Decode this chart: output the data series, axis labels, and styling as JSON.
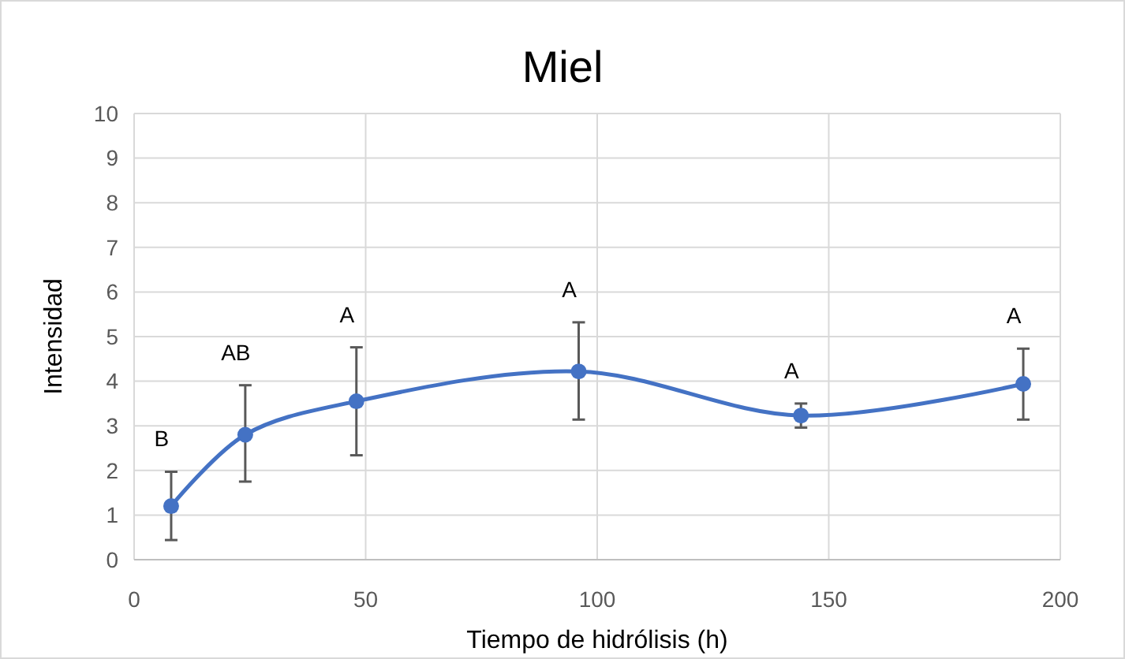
{
  "chart_data": {
    "type": "line",
    "title": "Miel",
    "xlabel": "Tiempo de hidrólisis (h)",
    "ylabel": "Intensidad",
    "x": [
      8,
      24,
      48,
      96,
      144,
      192
    ],
    "series": [
      {
        "color": "#4472c4",
        "values": [
          1.2,
          2.8,
          3.55,
          4.22,
          3.23,
          3.94
        ],
        "errors": [
          [
            0.44,
            1.97
          ],
          [
            1.75,
            3.91
          ],
          [
            2.34,
            4.76
          ],
          [
            3.14,
            5.32
          ],
          [
            2.96,
            3.5
          ],
          [
            3.14,
            4.73
          ]
        ]
      }
    ],
    "xlim": [
      0,
      200
    ],
    "xticks": [
      0,
      50,
      100,
      150,
      200
    ],
    "ylim": [
      0,
      10
    ],
    "yticks": [
      0,
      1,
      2,
      3,
      4,
      5,
      6,
      7,
      8,
      9,
      10
    ],
    "grid": true,
    "marker": "circle",
    "line_style": "solid",
    "annotations": [
      "B",
      "AB",
      "A",
      "A",
      "A",
      "A"
    ]
  }
}
